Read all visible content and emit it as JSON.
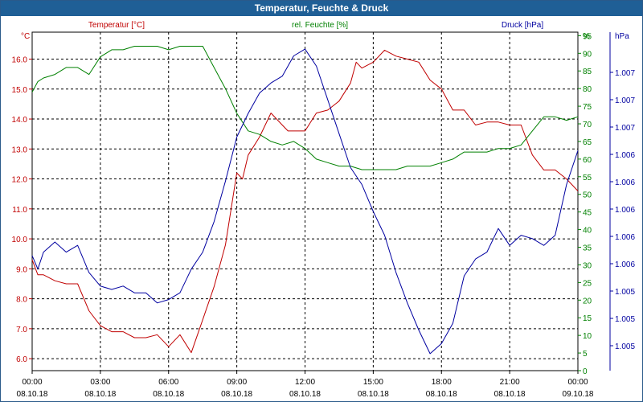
{
  "window": {
    "title": "Temperatur, Feuchte & Druck"
  },
  "chart_data": {
    "type": "line",
    "title": "Temperatur, Feuchte & Druck",
    "grid": true,
    "x": {
      "ticks": [
        {
          "time": "00:00",
          "date": "08.10.18"
        },
        {
          "time": "03:00",
          "date": "08.10.18"
        },
        {
          "time": "06:00",
          "date": "08.10.18"
        },
        {
          "time": "09:00",
          "date": "08.10.18"
        },
        {
          "time": "12:00",
          "date": "08.10.18"
        },
        {
          "time": "15:00",
          "date": "08.10.18"
        },
        {
          "time": "18:00",
          "date": "08.10.18"
        },
        {
          "time": "21:00",
          "date": "08.10.18"
        },
        {
          "time": "00:00",
          "date": "09.10.18"
        }
      ],
      "range_hours": [
        0,
        24
      ]
    },
    "axes": {
      "temperature": {
        "label": "Temperatur [°C]",
        "unit": "°C",
        "range": [
          5.6,
          16.9
        ],
        "ticks": [
          "6.0",
          "7.0",
          "8.0",
          "9.0",
          "10.0",
          "11.0",
          "12.0",
          "13.0",
          "14.0",
          "15.0",
          "16.0"
        ],
        "color": "#c00000"
      },
      "humidity": {
        "label": "rel. Feuchte [%]",
        "unit": "%",
        "range": [
          0,
          96
        ],
        "ticks": [
          "0",
          "5",
          "10",
          "15",
          "20",
          "25",
          "30",
          "35",
          "40",
          "45",
          "50",
          "55",
          "60",
          "65",
          "70",
          "75",
          "80",
          "85",
          "90",
          "95"
        ],
        "color": "#008000"
      },
      "pressure": {
        "label": "Druck [hPa]",
        "unit": "hPa",
        "ticks": [
          "1.005",
          "1.005",
          "1.005",
          "1.006",
          "1.006",
          "1.006",
          "1.006",
          "1.006",
          "1.007",
          "1.007",
          "1.007"
        ],
        "color": "#0000a0"
      }
    },
    "series": [
      {
        "name": "Temperatur [°C]",
        "axis": "temperature",
        "color": "#c00000",
        "x": [
          0,
          0.25,
          0.5,
          1,
          1.5,
          2,
          2.5,
          3,
          3.5,
          4,
          4.5,
          5,
          5.5,
          6,
          6.5,
          7,
          7.5,
          8,
          8.5,
          9,
          9.25,
          9.5,
          10,
          10.5,
          11,
          11.25,
          11.5,
          12,
          12.5,
          13,
          13.5,
          14,
          14.25,
          14.5,
          15,
          15.5,
          16,
          16.5,
          17,
          17.5,
          18,
          18.5,
          19,
          19.5,
          20,
          20.5,
          21,
          21.5,
          22,
          22.5,
          23,
          23.5,
          24
        ],
        "values": [
          9.3,
          8.8,
          8.8,
          8.6,
          8.5,
          8.5,
          7.6,
          7.1,
          6.9,
          6.9,
          6.7,
          6.7,
          6.8,
          6.4,
          6.8,
          6.2,
          7.3,
          8.4,
          9.8,
          12.2,
          12.0,
          12.8,
          13.4,
          14.2,
          13.8,
          13.6,
          13.6,
          13.6,
          14.2,
          14.3,
          14.6,
          15.2,
          15.9,
          15.7,
          15.9,
          16.3,
          16.1,
          16.0,
          15.9,
          15.3,
          15.0,
          14.3,
          14.3,
          13.8,
          13.9,
          13.9,
          13.8,
          13.8,
          12.8,
          12.3,
          12.3,
          12.0,
          11.6
        ]
      },
      {
        "name": "rel. Feuchte [%]",
        "axis": "humidity",
        "color": "#008000",
        "x": [
          0,
          0.25,
          0.5,
          1,
          1.5,
          2,
          2.5,
          3,
          3.5,
          4,
          4.5,
          5,
          5.5,
          6,
          6.5,
          7,
          7.5,
          8,
          8.5,
          9,
          9.5,
          10,
          10.5,
          11,
          11.5,
          12,
          12.5,
          13,
          13.5,
          14,
          14.5,
          15,
          15.5,
          16,
          16.5,
          17,
          17.5,
          18,
          18.5,
          19,
          19.5,
          20,
          20.5,
          21,
          21.5,
          22,
          22.5,
          23,
          23.5,
          24
        ],
        "values": [
          79,
          82,
          83,
          84,
          86,
          86,
          84,
          89,
          91,
          91,
          92,
          92,
          92,
          91,
          92,
          92,
          92,
          86,
          80,
          73,
          68,
          67,
          65,
          64,
          65,
          63,
          60,
          59,
          58,
          58,
          57,
          57,
          57,
          57,
          58,
          58,
          58,
          59,
          60,
          62,
          62,
          62,
          63,
          63,
          64,
          68,
          72,
          72,
          71,
          72
        ]
      },
      {
        "name": "Druck [hPa]",
        "axis": "pressure",
        "color": "#0000a0",
        "x": [
          0,
          0.25,
          0.5,
          1,
          1.5,
          2,
          2.5,
          3,
          3.5,
          4,
          4.5,
          5,
          5.5,
          6,
          6.5,
          7,
          7.5,
          8,
          8.5,
          9,
          9.5,
          10,
          10.5,
          11,
          11.5,
          12,
          12.5,
          13,
          13.5,
          14,
          14.5,
          15,
          15.5,
          16,
          16.5,
          17,
          17.5,
          18,
          18.5,
          19,
          19.5,
          20,
          20.5,
          21,
          21.5,
          22,
          22.5,
          23,
          23.5,
          24
        ],
        "values": [
          34,
          30,
          35,
          38,
          35,
          37,
          29,
          25,
          24,
          25,
          23,
          23,
          20,
          21,
          23,
          30,
          35,
          44,
          56,
          69,
          76,
          82,
          85,
          87,
          93,
          95,
          90,
          80,
          70,
          60,
          55,
          47,
          40,
          29,
          20,
          12,
          5,
          8,
          14,
          28,
          33,
          35,
          42,
          37,
          40,
          39,
          37,
          40,
          55,
          65
        ]
      }
    ]
  }
}
